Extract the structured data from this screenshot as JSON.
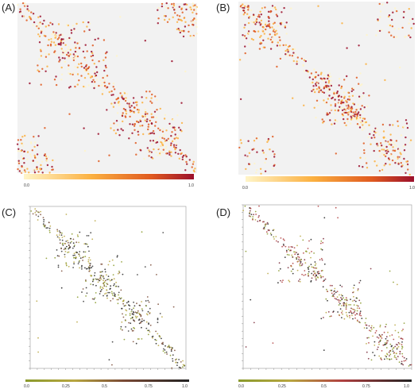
{
  "figure": {
    "panel_count": 4
  },
  "chart_data": [
    {
      "type": "heatmap",
      "label": "(A)",
      "colorbar": {
        "ticks": [
          "0.0",
          "1.0"
        ],
        "min_value": 0.0,
        "max_value": 1.0,
        "colors": [
          "#fff5c8",
          "#fbb040",
          "#e05a20",
          "#9b0f2b"
        ]
      },
      "background": "#f2f2f2",
      "map_range": [
        0,
        1
      ],
      "diagonal": {
        "from": [
          0.0,
          0.0
        ],
        "to": [
          1.0,
          1.0
        ],
        "band_width": 0.05
      },
      "off_diagonal_regions": [
        {
          "x": [
            0.12,
            0.42
          ],
          "y": [
            0.1,
            0.34
          ]
        },
        {
          "x": [
            0.2,
            0.55
          ],
          "y": [
            0.28,
            0.5
          ]
        },
        {
          "x": [
            0.55,
            0.78
          ],
          "y": [
            0.52,
            0.7
          ]
        },
        {
          "x": [
            0.62,
            0.92
          ],
          "y": [
            0.7,
            0.92
          ]
        },
        {
          "x": [
            0.78,
            1.0
          ],
          "y": [
            0.0,
            0.12
          ]
        },
        {
          "x": [
            0.0,
            0.2
          ],
          "y": [
            0.88,
            1.0
          ]
        }
      ],
      "notes": ""
    },
    {
      "type": "heatmap",
      "label": "(B)",
      "colorbar": {
        "ticks": [
          "0.0",
          "1.0"
        ],
        "min_value": 0.0,
        "max_value": 1.0,
        "colors": [
          "#fff5c8",
          "#fbb040",
          "#e05a20",
          "#9b0f2b"
        ]
      },
      "background": "#f2f2f2",
      "map_range": [
        0,
        1
      ],
      "diagonal": {
        "from": [
          0.0,
          0.0
        ],
        "to": [
          1.0,
          1.0
        ],
        "band_width": 0.045
      },
      "off_diagonal_regions": [
        {
          "x": [
            0.05,
            0.3
          ],
          "y": [
            0.02,
            0.2
          ]
        },
        {
          "x": [
            0.4,
            0.7
          ],
          "y": [
            0.42,
            0.6
          ]
        },
        {
          "x": [
            0.48,
            0.72
          ],
          "y": [
            0.58,
            0.72
          ]
        },
        {
          "x": [
            0.68,
            0.95
          ],
          "y": [
            0.78,
            0.98
          ]
        },
        {
          "x": [
            0.0,
            0.22
          ],
          "y": [
            0.78,
            1.0
          ]
        }
      ]
    },
    {
      "type": "heatmap",
      "label": "(C)",
      "colorbar": {
        "ticks": [
          "0.0",
          "0.25",
          "0.5",
          "0.75",
          "1.0"
        ],
        "colors": [
          "#8a9a2c",
          "#b8a640",
          "#7a4a35",
          "#3a3a3a",
          "#222222"
        ]
      },
      "background": "#ffffff",
      "map_range": [
        0,
        1
      ],
      "diagonal": {
        "from": [
          0.0,
          0.0
        ],
        "to": [
          1.0,
          1.0
        ],
        "band_width": 0.04
      },
      "off_diagonal_regions": [
        {
          "x": [
            0.15,
            0.38
          ],
          "y": [
            0.18,
            0.4
          ]
        },
        {
          "x": [
            0.3,
            0.55
          ],
          "y": [
            0.45,
            0.6
          ]
        },
        {
          "x": [
            0.6,
            0.85
          ],
          "y": [
            0.58,
            0.72
          ]
        }
      ]
    },
    {
      "type": "heatmap",
      "label": "(D)",
      "colorbar": {
        "ticks": [
          "0.0",
          "0.25",
          "0.5",
          "0.75",
          "1.0"
        ],
        "colors": [
          "#8a9a2c",
          "#b8a640",
          "#b04040",
          "#7a2a3a",
          "#222222"
        ]
      },
      "background": "#ffffff",
      "map_range": [
        0,
        1
      ],
      "diagonal": {
        "from": [
          0.0,
          0.0
        ],
        "to": [
          1.0,
          1.0
        ],
        "band_width": 0.035
      },
      "off_diagonal_regions": [
        {
          "x": [
            0.2,
            0.45
          ],
          "y": [
            0.28,
            0.48
          ]
        },
        {
          "x": [
            0.45,
            0.7
          ],
          "y": [
            0.55,
            0.7
          ]
        },
        {
          "x": [
            0.72,
            0.95
          ],
          "y": [
            0.8,
            0.95
          ]
        }
      ]
    }
  ]
}
